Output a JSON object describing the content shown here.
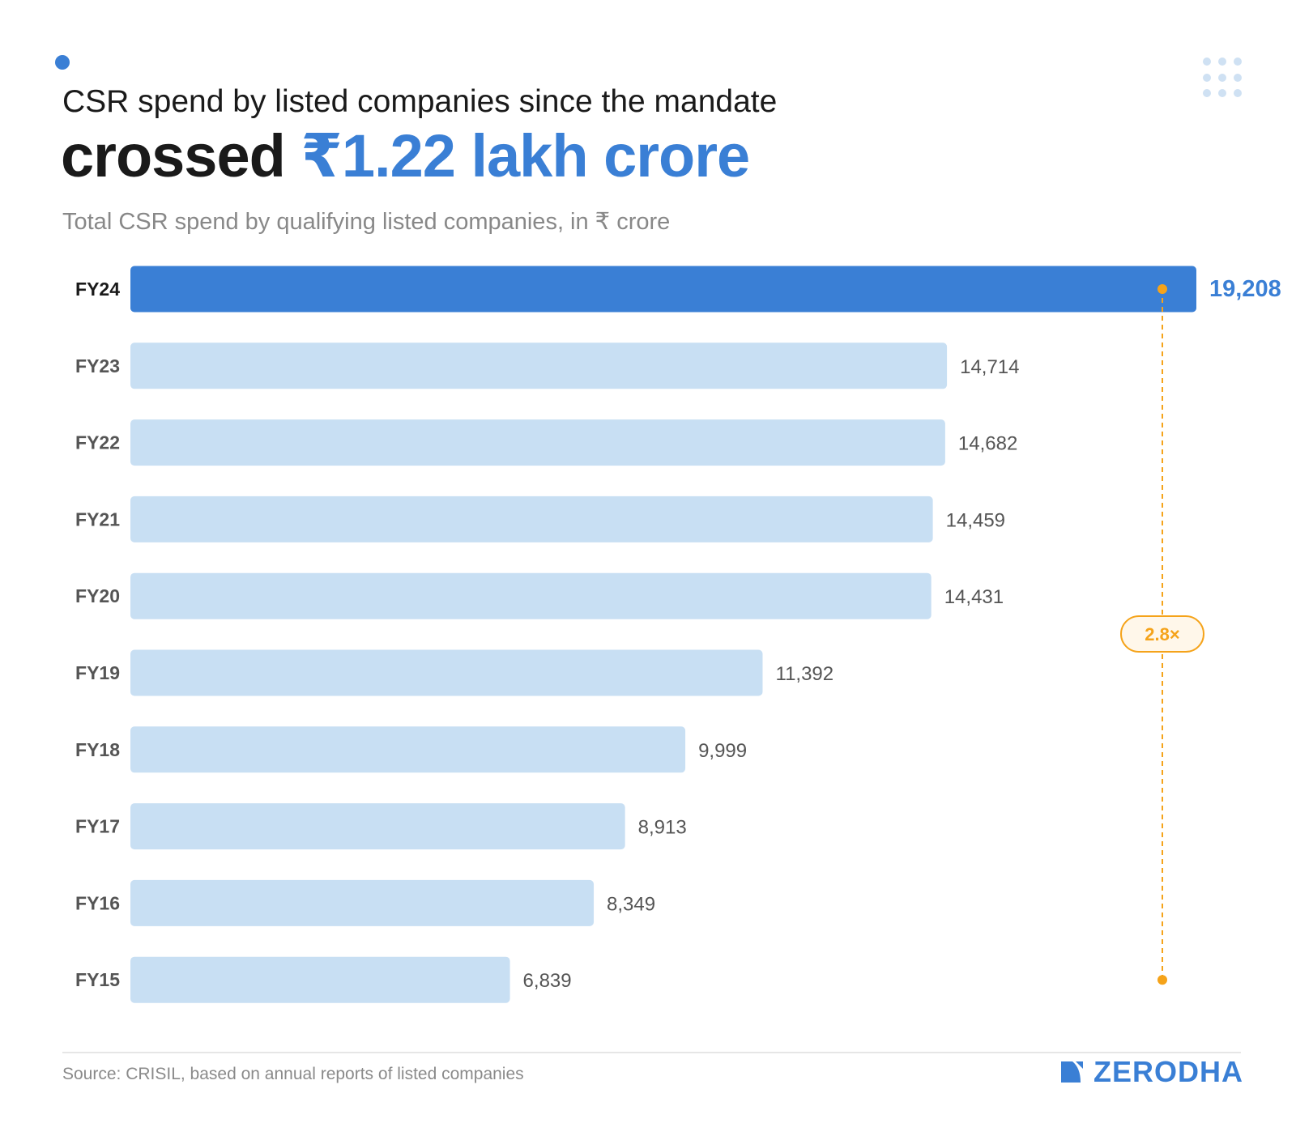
{
  "header": {
    "title_line1": "CSR spend by listed companies since the mandate",
    "title_line2_prefix": "crossed ",
    "title_line2_highlight": "₹1.22 lakh crore",
    "subtitle": "Total CSR spend by qualifying listed companies, in ₹ crore"
  },
  "chart_data": {
    "type": "bar",
    "orientation": "horizontal",
    "title": "CSR spend by listed companies since the mandate crossed ₹1.22 lakh crore",
    "subtitle": "Total CSR spend by qualifying listed companies, in ₹ crore",
    "categories": [
      "FY24",
      "FY23",
      "FY22",
      "FY21",
      "FY20",
      "FY19",
      "FY18",
      "FY17",
      "FY16",
      "FY15"
    ],
    "values": [
      19208,
      14714,
      14682,
      14459,
      14431,
      11392,
      9999,
      8913,
      8349,
      6839
    ],
    "value_labels": [
      "19,208",
      "14,714",
      "14,682",
      "14,459",
      "14,431",
      "11,392",
      "9,999",
      "8,913",
      "8,349",
      "6,839"
    ],
    "highlight_category": "FY24",
    "xlim": [
      0,
      19208
    ],
    "grid": false,
    "annotation": {
      "label": "2.8×",
      "from": "FY15",
      "to": "FY24"
    },
    "colors": {
      "highlight": "#3a7fd5",
      "default": "#c8dff3",
      "annotation": "#f5a31a",
      "annotation_bg": "#fff7ea"
    }
  },
  "footer": {
    "source": "Source: CRISIL, based on annual reports of listed companies",
    "brand": "ZERODHA"
  }
}
